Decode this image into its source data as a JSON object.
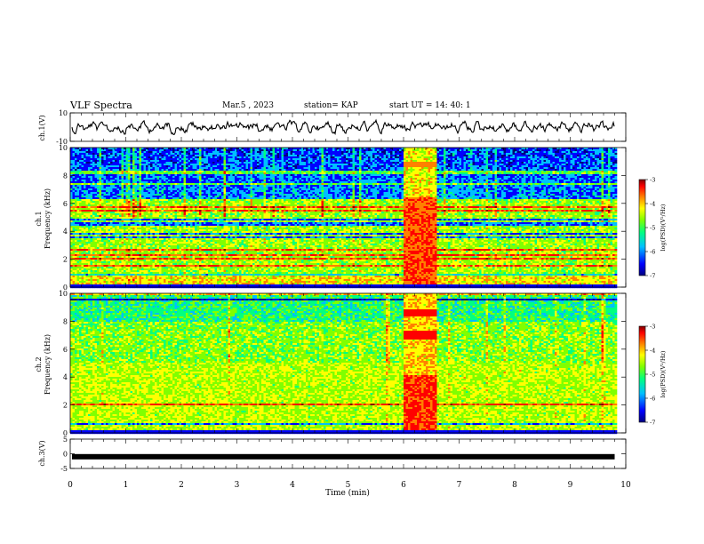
{
  "header": {
    "title": "VLF Spectra",
    "date": "Mar.5 , 2023",
    "station": "station= KAP",
    "start": "start UT = 14: 40: 1"
  },
  "colors": {
    "background": "#ffffff",
    "axis": "#000000",
    "colormap": [
      "#000080",
      "#0000ff",
      "#00c0ff",
      "#00ff80",
      "#80ff00",
      "#ffff00",
      "#ff8000",
      "#ff0000",
      "#800000"
    ]
  },
  "chart_data": [
    {
      "type": "line",
      "panel": "ch1-waveform",
      "ylabel": "ch.1(V)",
      "ylim": [
        -10,
        10
      ],
      "yticks": [
        "10",
        "-10"
      ],
      "xlim": [
        0,
        10
      ],
      "series": [
        {
          "description_of_signal": "noisy oscillating trace centered near 0 V, amplitude about ±5 V, from 0 to ~9.8 min"
        }
      ]
    },
    {
      "type": "heatmap",
      "panel": "ch1-spectrogram",
      "ylabel": "ch.1\nFrequency (kHz)",
      "ylim": [
        0,
        10
      ],
      "yticks": [
        "0",
        "2",
        "4",
        "6",
        "8",
        "10"
      ],
      "xlim": [
        0,
        10
      ],
      "data_extent_min": [
        0,
        9.8
      ],
      "features": {
        "low_band_level_range_khz": [
          0,
          6
        ],
        "high_band_lower_power_range_khz": [
          6,
          10
        ],
        "enhanced_burst_min": [
          6.0,
          6.6
        ]
      },
      "colorbar": {
        "label": "log(PSD)(V²/Hz)",
        "range": [
          -7,
          -3
        ],
        "ticks": [
          "-3",
          "-4",
          "-5",
          "-6",
          "-7"
        ]
      }
    },
    {
      "type": "heatmap",
      "panel": "ch2-spectrogram",
      "ylabel": "ch.2\nFrequency (kHz)",
      "ylim": [
        0,
        10
      ],
      "yticks": [
        "0",
        "2",
        "4",
        "6",
        "8",
        "10"
      ],
      "xlim": [
        0,
        10
      ],
      "data_extent_min": [
        0,
        9.8
      ],
      "features": {
        "enhanced_burst_min": [
          6.0,
          6.6
        ]
      },
      "colorbar": {
        "label": "log(PSD)(V²/Hz)",
        "range": [
          -7,
          -3
        ],
        "ticks": [
          "-3",
          "-4",
          "-5",
          "-6",
          "-7"
        ]
      }
    },
    {
      "type": "line",
      "panel": "ch3-waveform",
      "ylabel": "ch.3(V)",
      "ylim": [
        -5,
        5
      ],
      "yticks": [
        "5",
        "0",
        "-5"
      ],
      "xlim": [
        0,
        10
      ],
      "series": [
        {
          "description_of_signal": "thick flat trace near -1 V across 0 to ~9.8 min"
        }
      ]
    }
  ],
  "xaxis": {
    "label": "Time (min)",
    "ticks": [
      "0",
      "1",
      "2",
      "3",
      "4",
      "5",
      "6",
      "7",
      "8",
      "9",
      "10"
    ]
  },
  "labels": {
    "ch1_wave": "ch.1(V)",
    "ch1_spec_a": "ch.1",
    "ch1_spec_b": "Frequency (kHz)",
    "ch2_spec_a": "ch.2",
    "ch2_spec_b": "Frequency (kHz)",
    "ch3_wave": "ch.3(V)",
    "colorbar": "log(PSD)(V²/Hz)"
  },
  "ticks": {
    "ch1_wave": [
      "10",
      "-10"
    ],
    "spec": [
      "0",
      "2",
      "4",
      "6",
      "8",
      "10"
    ],
    "ch3_wave": [
      "5",
      "0",
      "-5"
    ],
    "colorbar": [
      "-3",
      "-4",
      "-5",
      "-6",
      "-7"
    ]
  }
}
